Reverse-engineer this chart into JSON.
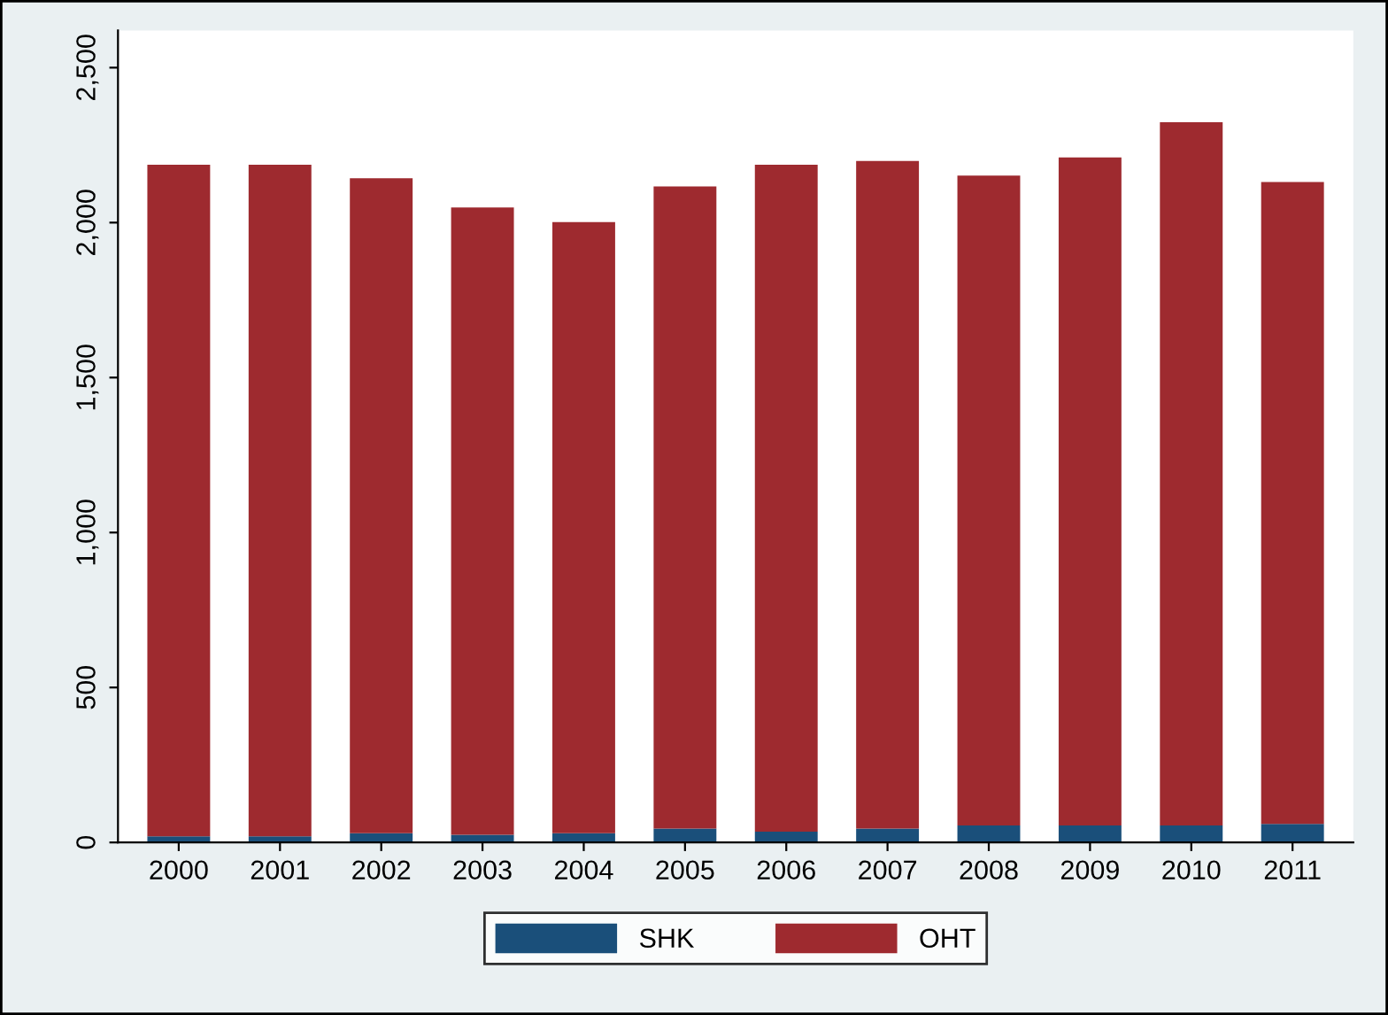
{
  "chart_data": {
    "type": "bar",
    "stacked": true,
    "categories": [
      "2000",
      "2001",
      "2002",
      "2003",
      "2004",
      "2005",
      "2006",
      "2007",
      "2008",
      "2009",
      "2010",
      "2011"
    ],
    "series": [
      {
        "name": "SHK",
        "color": "#1a4f7a",
        "values": [
          20,
          20,
          30,
          25,
          30,
          45,
          35,
          45,
          55,
          55,
          55,
          60
        ]
      },
      {
        "name": "OHT",
        "color": "#9e2a2f",
        "values": [
          2167,
          2167,
          2113,
          2024,
          1972,
          2072,
          2152,
          2154,
          2097,
          2155,
          2269,
          2071
        ]
      }
    ],
    "ylim": [
      0,
      2620
    ],
    "yticks": [
      {
        "value": 0,
        "label": "0"
      },
      {
        "value": 500,
        "label": "500"
      },
      {
        "value": 1000,
        "label": "1,000"
      },
      {
        "value": 1500,
        "label": "1,500"
      },
      {
        "value": 2000,
        "label": "2,000"
      },
      {
        "value": 2500,
        "label": "2,500"
      }
    ],
    "legend": "bottom",
    "grid": false
  }
}
